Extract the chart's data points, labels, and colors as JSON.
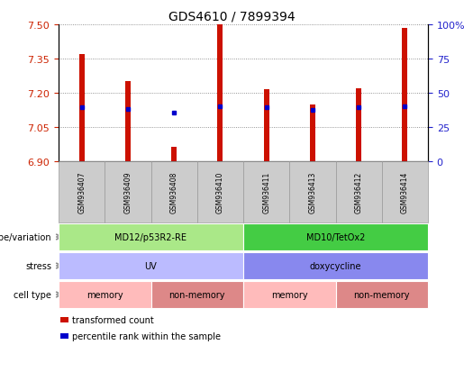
{
  "title": "GDS4610 / 7899394",
  "samples": [
    "GSM936407",
    "GSM936409",
    "GSM936408",
    "GSM936410",
    "GSM936411",
    "GSM936413",
    "GSM936412",
    "GSM936414"
  ],
  "bar_tops": [
    7.37,
    7.25,
    6.965,
    7.5,
    7.215,
    7.15,
    7.22,
    7.485
  ],
  "bar_bottom": 6.9,
  "blue_dot_y": [
    7.135,
    7.13,
    7.115,
    7.14,
    7.135,
    7.125,
    7.135,
    7.14
  ],
  "ylim": [
    6.9,
    7.5
  ],
  "yticks_left": [
    6.9,
    7.05,
    7.2,
    7.35,
    7.5
  ],
  "yticks_right_labels": [
    "0",
    "25",
    "50",
    "75",
    "100%"
  ],
  "yticks_right_vals": [
    0,
    25,
    50,
    75,
    100
  ],
  "bar_color": "#cc1100",
  "dot_color": "#0000cc",
  "grid_color": "#777777",
  "left_tick_color": "#cc2200",
  "right_tick_color": "#2222cc",
  "sample_box_color": "#cccccc",
  "genotype_row": [
    {
      "label": "MD12/p53R2-RE",
      "span": [
        0,
        4
      ],
      "color": "#aae888"
    },
    {
      "label": "MD10/TetOx2",
      "span": [
        4,
        8
      ],
      "color": "#44cc44"
    }
  ],
  "stress_row": [
    {
      "label": "UV",
      "span": [
        0,
        4
      ],
      "color": "#bbbbff"
    },
    {
      "label": "doxycycline",
      "span": [
        4,
        8
      ],
      "color": "#8888ee"
    }
  ],
  "cell_type_row": [
    {
      "label": "memory",
      "span": [
        0,
        2
      ],
      "color": "#ffbbbb"
    },
    {
      "label": "non-memory",
      "span": [
        2,
        4
      ],
      "color": "#dd8888"
    },
    {
      "label": "memory",
      "span": [
        4,
        6
      ],
      "color": "#ffbbbb"
    },
    {
      "label": "non-memory",
      "span": [
        6,
        8
      ],
      "color": "#dd8888"
    }
  ],
  "annotation_row_labels": [
    "genotype/variation",
    "stress",
    "cell type"
  ],
  "legend_items": [
    {
      "color": "#cc1100",
      "marker": "s",
      "label": "transformed count"
    },
    {
      "color": "#0000cc",
      "marker": "s",
      "label": "percentile rank within the sample"
    }
  ],
  "bar_width": 0.12
}
